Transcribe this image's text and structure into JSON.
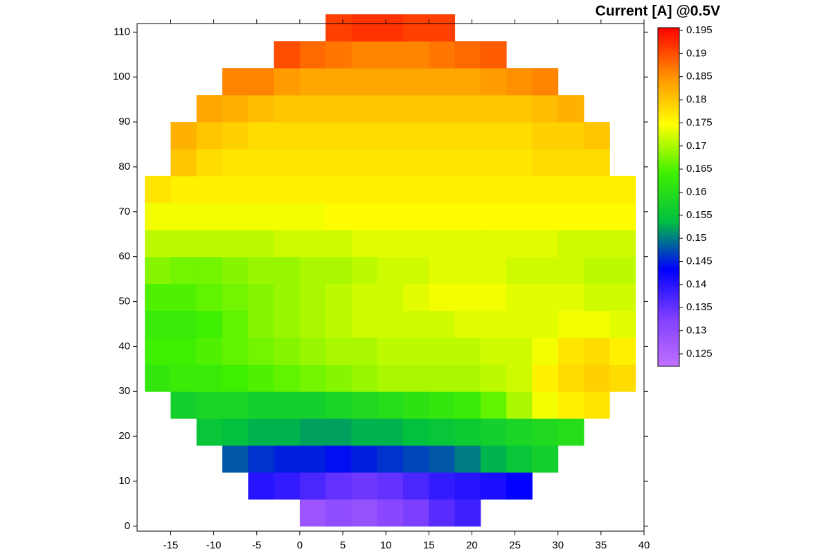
{
  "chart_data": {
    "type": "heatmap",
    "title": "Current [A] @0.5V",
    "x": [
      -16.5,
      -13.5,
      -10.5,
      -7.5,
      -4.5,
      -1.5,
      1.5,
      4.5,
      7.5,
      10.5,
      13.5,
      16.5,
      19.5,
      22.5,
      25.5,
      28.5,
      31.5,
      34.5,
      37.5
    ],
    "y": [
      3,
      9,
      15,
      21,
      27,
      33,
      39,
      45,
      51,
      57,
      63,
      69,
      75,
      81,
      87,
      93,
      99,
      105,
      111
    ],
    "values": [
      [
        null,
        null,
        null,
        null,
        null,
        null,
        0.128,
        0.13,
        0.129,
        0.131,
        0.133,
        0.136,
        0.138,
        null,
        null,
        null,
        null,
        null,
        null
      ],
      [
        null,
        null,
        null,
        null,
        0.14,
        0.139,
        0.137,
        0.135,
        0.134,
        0.135,
        0.137,
        0.139,
        0.14,
        0.141,
        0.143,
        null,
        null,
        null,
        null
      ],
      [
        null,
        null,
        null,
        0.148,
        0.146,
        0.145,
        0.145,
        0.144,
        0.145,
        0.146,
        0.147,
        0.148,
        0.15,
        0.153,
        0.155,
        0.157,
        null,
        null,
        null
      ],
      [
        null,
        null,
        0.155,
        0.154,
        0.153,
        0.153,
        0.152,
        0.152,
        0.153,
        0.153,
        0.154,
        0.155,
        0.156,
        0.157,
        0.158,
        0.159,
        0.16,
        null,
        null
      ],
      [
        null,
        0.157,
        0.158,
        0.158,
        0.157,
        0.157,
        0.157,
        0.158,
        0.159,
        0.16,
        0.161,
        0.162,
        0.163,
        0.166,
        0.17,
        0.174,
        0.176,
        0.177,
        null
      ],
      [
        0.162,
        0.163,
        0.163,
        0.164,
        0.165,
        0.166,
        0.167,
        0.168,
        0.169,
        0.17,
        0.17,
        0.17,
        0.17,
        0.171,
        0.172,
        0.176,
        0.178,
        0.179,
        0.178
      ],
      [
        0.164,
        0.164,
        0.165,
        0.166,
        0.167,
        0.168,
        0.169,
        0.17,
        0.17,
        0.171,
        0.171,
        0.171,
        0.171,
        0.172,
        0.172,
        0.174,
        0.177,
        0.178,
        0.176
      ],
      [
        0.163,
        0.163,
        0.164,
        0.166,
        0.168,
        0.169,
        0.17,
        0.171,
        0.172,
        0.172,
        0.172,
        0.172,
        0.173,
        0.173,
        0.173,
        0.173,
        0.174,
        0.174,
        0.173
      ],
      [
        0.165,
        0.165,
        0.166,
        0.167,
        0.168,
        0.169,
        0.17,
        0.171,
        0.172,
        0.172,
        0.173,
        0.174,
        0.174,
        0.174,
        0.173,
        0.173,
        0.173,
        0.172,
        0.172
      ],
      [
        0.168,
        0.167,
        0.167,
        0.168,
        0.169,
        0.169,
        0.17,
        0.17,
        0.171,
        0.172,
        0.172,
        0.173,
        0.173,
        0.173,
        0.172,
        0.172,
        0.172,
        0.171,
        0.171
      ],
      [
        0.171,
        0.171,
        0.171,
        0.171,
        0.171,
        0.172,
        0.172,
        0.172,
        0.173,
        0.173,
        0.173,
        0.173,
        0.173,
        0.173,
        0.173,
        0.173,
        0.172,
        0.172,
        0.172
      ],
      [
        0.174,
        0.174,
        0.174,
        0.174,
        0.174,
        0.174,
        0.174,
        0.175,
        0.175,
        0.175,
        0.175,
        0.175,
        0.175,
        0.175,
        0.175,
        0.175,
        0.175,
        0.175,
        0.175
      ],
      [
        0.177,
        0.176,
        0.176,
        0.176,
        0.176,
        0.176,
        0.176,
        0.176,
        0.176,
        0.176,
        0.176,
        0.176,
        0.176,
        0.176,
        0.176,
        0.176,
        0.176,
        0.176,
        0.176
      ],
      [
        null,
        0.18,
        0.178,
        0.177,
        0.177,
        0.177,
        0.177,
        0.177,
        0.177,
        0.177,
        0.177,
        0.177,
        0.177,
        0.177,
        0.177,
        0.178,
        0.178,
        0.178,
        null
      ],
      [
        null,
        0.182,
        0.18,
        0.179,
        0.178,
        0.178,
        0.178,
        0.178,
        0.178,
        0.178,
        0.178,
        0.178,
        0.178,
        0.178,
        0.178,
        0.179,
        0.179,
        0.18,
        null
      ],
      [
        null,
        null,
        0.183,
        0.182,
        0.181,
        0.18,
        0.18,
        0.18,
        0.18,
        0.18,
        0.18,
        0.18,
        0.18,
        0.18,
        0.18,
        0.181,
        0.182,
        null,
        null
      ],
      [
        null,
        null,
        null,
        0.186,
        0.186,
        0.184,
        0.183,
        0.183,
        0.183,
        0.183,
        0.183,
        0.183,
        0.183,
        0.184,
        0.185,
        0.186,
        null,
        null,
        null
      ],
      [
        null,
        null,
        null,
        null,
        null,
        0.19,
        0.188,
        0.187,
        0.186,
        0.186,
        0.186,
        0.187,
        0.188,
        0.189,
        null,
        null,
        null,
        null,
        null
      ],
      [
        null,
        null,
        null,
        null,
        null,
        null,
        null,
        0.191,
        0.192,
        0.192,
        0.191,
        0.191,
        null,
        null,
        null,
        null,
        null,
        null,
        null
      ]
    ],
    "xlim": [
      -18.9,
      40
    ],
    "ylim": [
      -1.1,
      111.9
    ],
    "xticks": [
      -15,
      -10,
      -5,
      0,
      5,
      10,
      15,
      20,
      25,
      30,
      35,
      40
    ],
    "yticks": [
      0,
      10,
      20,
      30,
      40,
      50,
      60,
      70,
      80,
      90,
      100,
      110
    ],
    "colorbar": {
      "lim": [
        0.1223,
        0.1956
      ],
      "ticks": [
        0.125,
        0.13,
        0.135,
        0.14,
        0.145,
        0.15,
        0.155,
        0.16,
        0.165,
        0.17,
        0.175,
        0.18,
        0.185,
        0.19,
        0.195
      ],
      "colors": [
        "#c070ff",
        "#7f3fff",
        "#0000ff",
        "#00c040",
        "#40f000",
        "#ffff00",
        "#ff9000",
        "#ff0000"
      ]
    }
  }
}
